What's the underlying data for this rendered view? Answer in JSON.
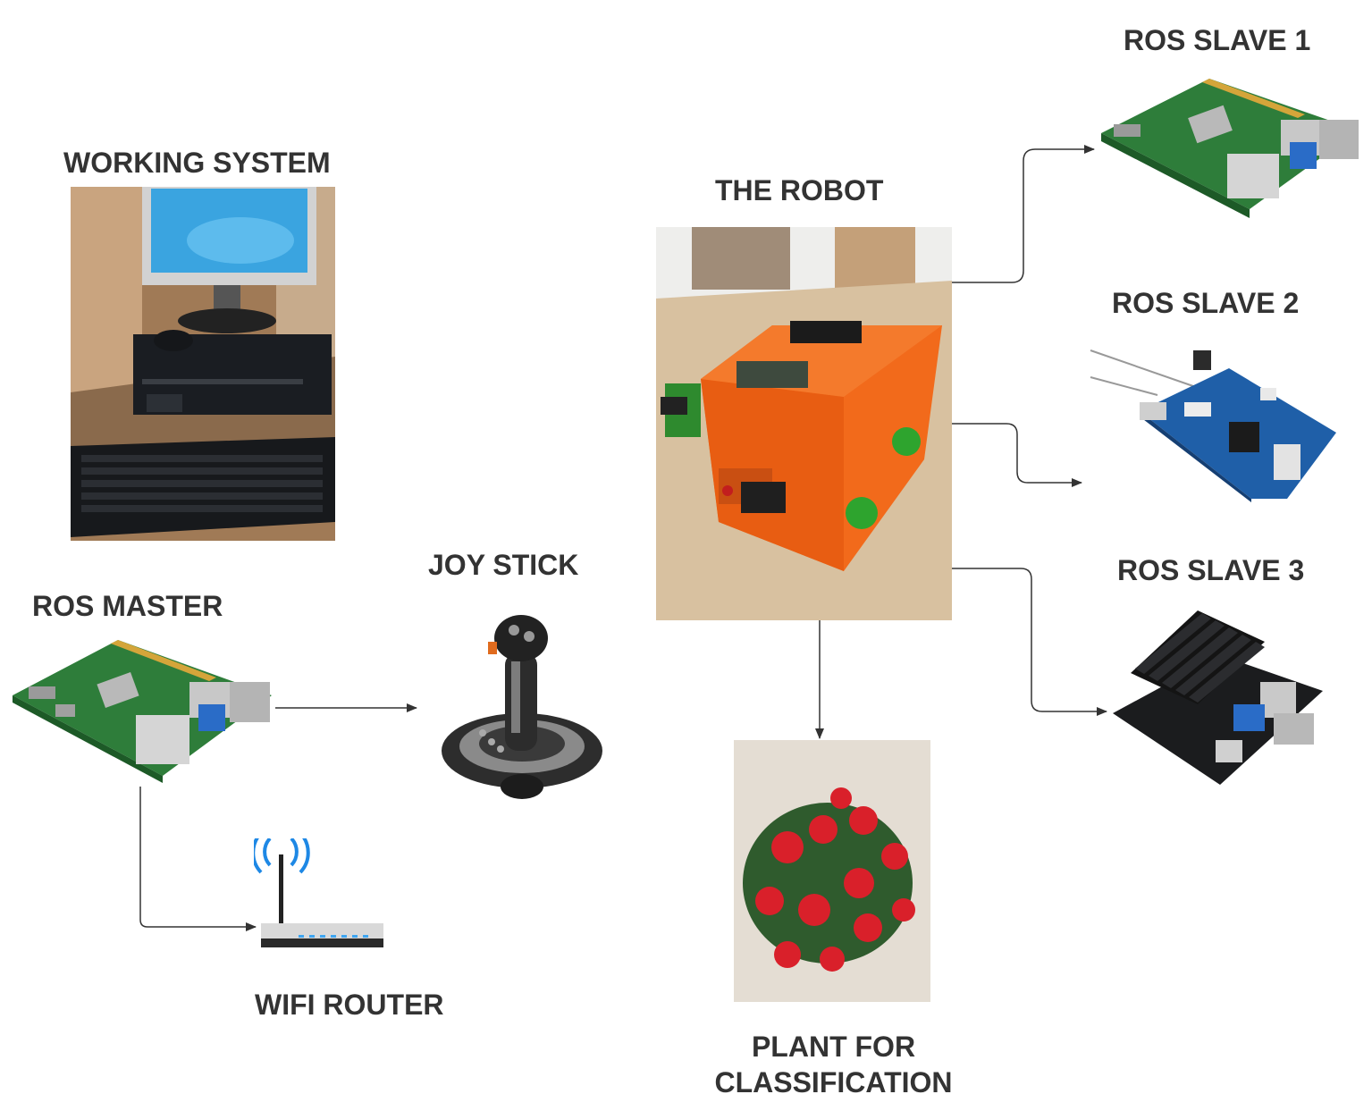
{
  "labels": {
    "working_system": "WORKING SYSTEM",
    "ros_master": "ROS MASTER",
    "joy_stick": "JOY STICK",
    "wifi_router": "WIFI ROUTER",
    "the_robot": "THE ROBOT",
    "plant_line1": "PLANT FOR",
    "plant_line2": "CLASSIFICATION",
    "ros_slave_1": "ROS SLAVE 1",
    "ros_slave_2": "ROS SLAVE 2",
    "ros_slave_3": "ROS SLAVE 3"
  },
  "colors": {
    "label_text": "#333333",
    "connector": "#333333",
    "robot_orange": "#f26a1b",
    "board_green": "#2e7d3a",
    "flower_red": "#d9202a",
    "router_blue": "#1e88e5"
  },
  "icons": {
    "working_system": "desktop-computer-photo",
    "ros_master": "raspberry-pi-board",
    "joy_stick": "joystick-controller",
    "wifi_router": "wifi-router",
    "the_robot": "orange-robot-photo",
    "plant": "red-flower-plant-photo",
    "ros_slave_1": "raspberry-pi-board",
    "ros_slave_2": "beaglebone-board",
    "ros_slave_3": "jetson-nano-board"
  }
}
